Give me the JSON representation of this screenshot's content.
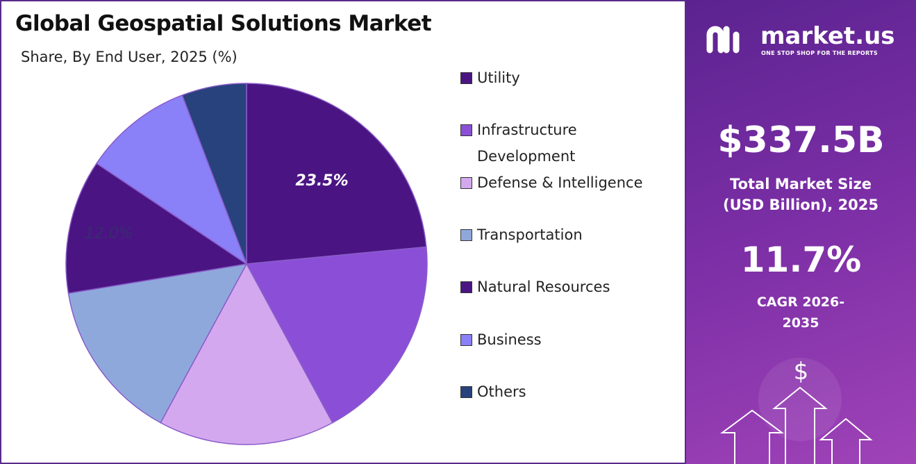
{
  "chart_data": {
    "type": "pie",
    "title": "Global Geospatial Solutions Market",
    "subtitle": "Share, By End User, 2025 (%)",
    "categories": [
      "Utility",
      "Infrastructure Development",
      "Defense & Intelligence",
      "Transportation",
      "Natural Resources",
      "Business",
      "Others"
    ],
    "values": [
      23.5,
      18.6,
      15.8,
      14.5,
      12.0,
      9.8,
      5.8
    ],
    "value_labels": [
      "23.5%",
      null,
      null,
      null,
      "12.0%",
      null,
      null
    ],
    "colors": [
      "#4a1583",
      "#8a4fd6",
      "#d4a8ef",
      "#8fa8dc",
      "#4a1583",
      "#8a80f7",
      "#27427c"
    ]
  },
  "panel": {
    "logo_text": "market.us",
    "tagline": "ONE STOP SHOP FOR THE REPORTS",
    "market_size": "$337.5B",
    "market_size_label": "Total Market Size (USD Billion), 2025",
    "cagr": "11.7%",
    "cagr_label": "CAGR 2026-2035",
    "icon": "$"
  }
}
